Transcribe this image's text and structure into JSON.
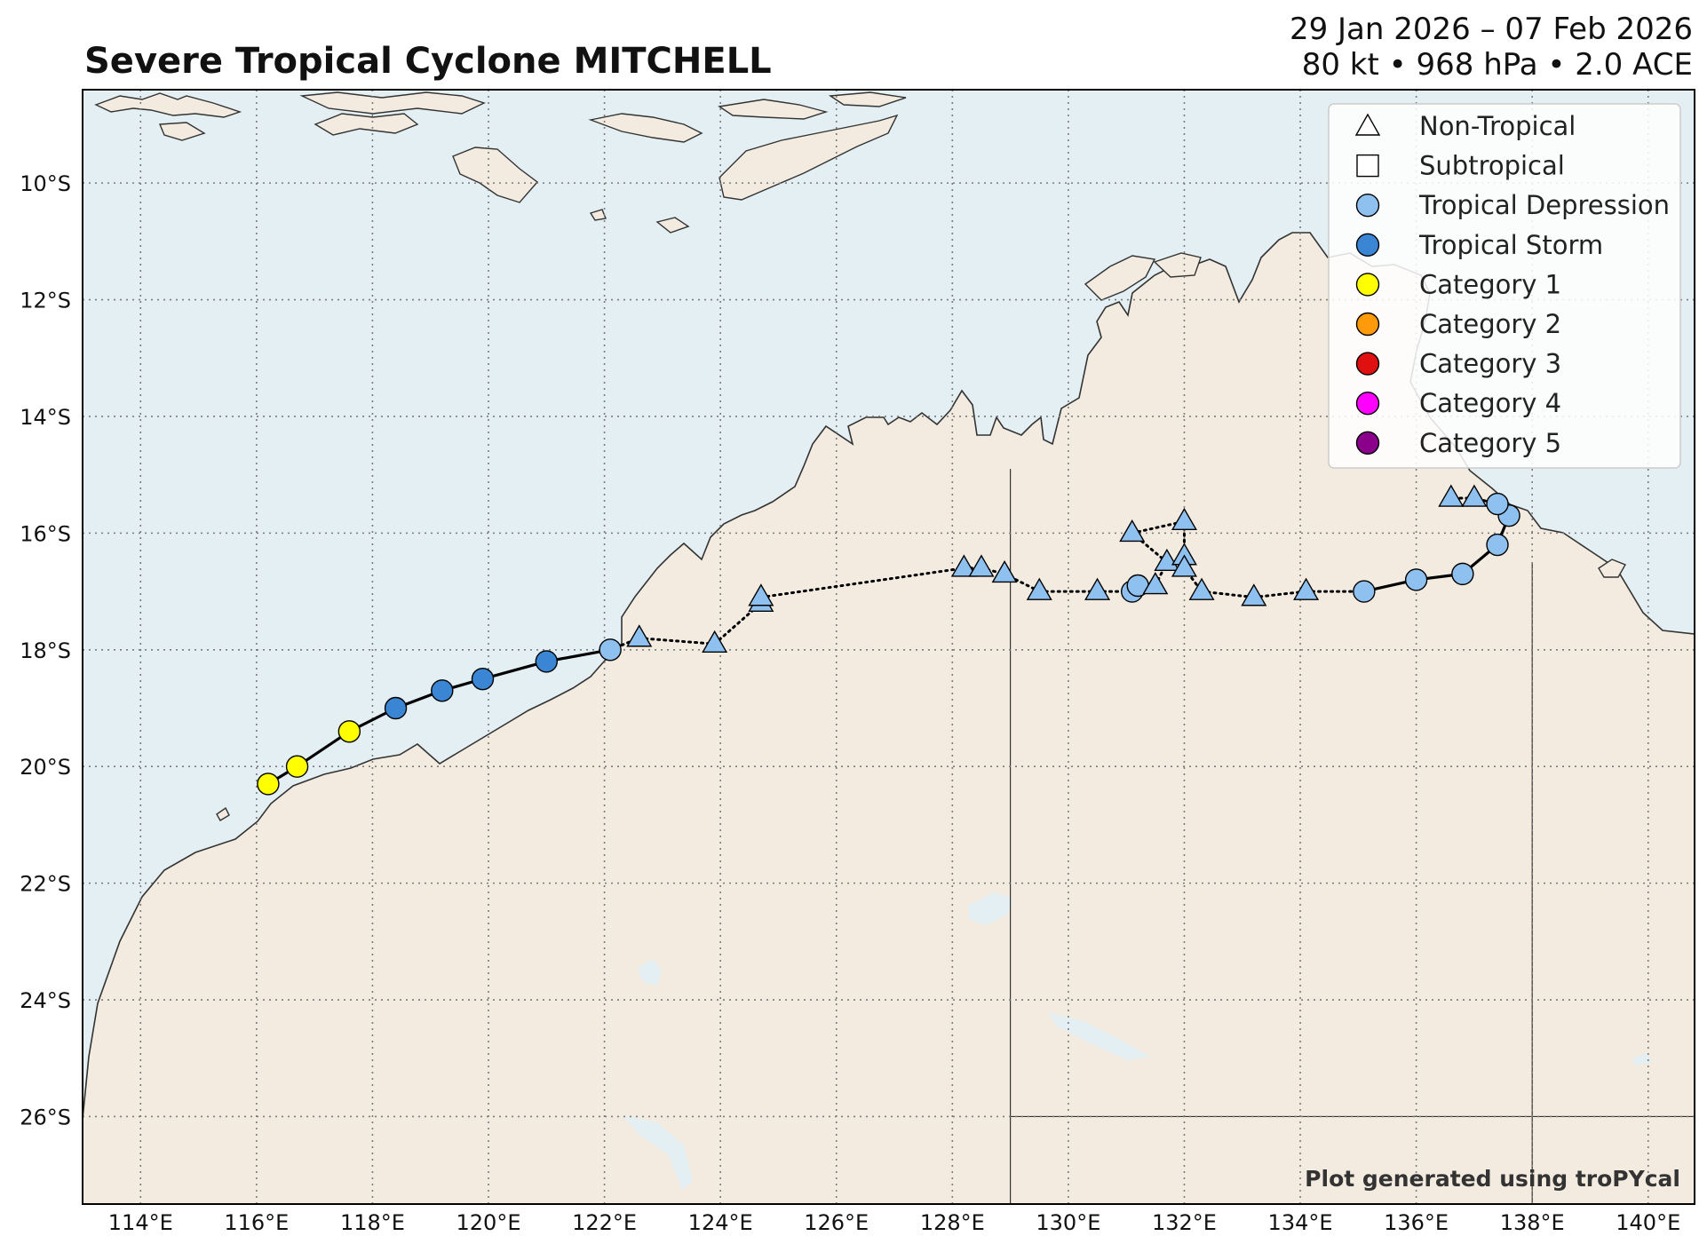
{
  "header": {
    "title": "Severe Tropical Cyclone MITCHELL",
    "date_range": "29 Jan 2026 – 07 Feb 2026",
    "stats": "80 kt • 968 hPa • 2.0 ACE"
  },
  "credit": "Plot generated using troPYcal",
  "colors": {
    "ocean": "#e3eff2",
    "land": "#f3ebe0",
    "coast": "#333333",
    "grid": "#7a7a7a",
    "track": "#000000"
  },
  "map": {
    "lon_range": [
      113.0,
      140.8
    ],
    "lat_range": [
      -27.5,
      -8.4
    ],
    "lon_ticks": [
      "114°E",
      "116°E",
      "118°E",
      "120°E",
      "122°E",
      "124°E",
      "126°E",
      "128°E",
      "130°E",
      "132°E",
      "134°E",
      "136°E",
      "138°E",
      "140°E"
    ],
    "lat_ticks": [
      "10°S",
      "12°S",
      "14°S",
      "16°S",
      "18°S",
      "20°S",
      "22°S",
      "24°S",
      "26°S"
    ],
    "gridlines": true,
    "legend_position": "top-right"
  },
  "legend": {
    "items": [
      {
        "label": "Non-Tropical",
        "shape": "triangle",
        "color": "#ffffff"
      },
      {
        "label": "Subtropical",
        "shape": "square",
        "color": "#ffffff"
      },
      {
        "label": "Tropical Depression",
        "shape": "circle",
        "color": "#8fc1f0"
      },
      {
        "label": "Tropical Storm",
        "shape": "circle",
        "color": "#3a86d4"
      },
      {
        "label": "Category 1",
        "shape": "circle",
        "color": "#ffff00"
      },
      {
        "label": "Category 2",
        "shape": "circle",
        "color": "#ff9a0a"
      },
      {
        "label": "Category 3",
        "shape": "circle",
        "color": "#e01010"
      },
      {
        "label": "Category 4",
        "shape": "circle",
        "color": "#ff00ff"
      },
      {
        "label": "Category 5",
        "shape": "circle",
        "color": "#8b008b"
      }
    ]
  },
  "chart_data": {
    "type": "scatter",
    "title": "Severe Tropical Cyclone MITCHELL",
    "xlim": [
      113.0,
      140.8
    ],
    "ylim": [
      -27.5,
      -8.4
    ],
    "track": [
      {
        "lon": 116.2,
        "lat": -20.3,
        "type": "Category 1"
      },
      {
        "lon": 116.7,
        "lat": -20.0,
        "type": "Category 1"
      },
      {
        "lon": 117.6,
        "lat": -19.4,
        "type": "Category 1"
      },
      {
        "lon": 118.4,
        "lat": -19.0,
        "type": "Tropical Storm"
      },
      {
        "lon": 119.2,
        "lat": -18.7,
        "type": "Tropical Storm"
      },
      {
        "lon": 119.9,
        "lat": -18.5,
        "type": "Tropical Storm"
      },
      {
        "lon": 121.0,
        "lat": -18.2,
        "type": "Tropical Storm"
      },
      {
        "lon": 122.1,
        "lat": -18.0,
        "type": "Tropical Depression"
      },
      {
        "lon": 122.6,
        "lat": -17.8,
        "type": "Non-Tropical"
      },
      {
        "lon": 123.9,
        "lat": -17.9,
        "type": "Non-Tropical"
      },
      {
        "lon": 124.7,
        "lat": -17.2,
        "type": "Non-Tropical"
      },
      {
        "lon": 124.7,
        "lat": -17.1,
        "type": "Non-Tropical"
      },
      {
        "lon": 128.2,
        "lat": -16.6,
        "type": "Non-Tropical"
      },
      {
        "lon": 128.5,
        "lat": -16.6,
        "type": "Non-Tropical"
      },
      {
        "lon": 128.9,
        "lat": -16.7,
        "type": "Non-Tropical"
      },
      {
        "lon": 129.5,
        "lat": -17.0,
        "type": "Non-Tropical"
      },
      {
        "lon": 130.5,
        "lat": -17.0,
        "type": "Non-Tropical"
      },
      {
        "lon": 131.1,
        "lat": -17.0,
        "type": "Tropical Depression"
      },
      {
        "lon": 131.2,
        "lat": -16.9,
        "type": "Tropical Depression"
      },
      {
        "lon": 131.5,
        "lat": -16.9,
        "type": "Non-Tropical"
      },
      {
        "lon": 131.7,
        "lat": -16.5,
        "type": "Non-Tropical"
      },
      {
        "lon": 131.1,
        "lat": -16.0,
        "type": "Non-Tropical"
      },
      {
        "lon": 132.0,
        "lat": -15.8,
        "type": "Non-Tropical"
      },
      {
        "lon": 132.0,
        "lat": -16.4,
        "type": "Non-Tropical"
      },
      {
        "lon": 132.0,
        "lat": -16.6,
        "type": "Non-Tropical"
      },
      {
        "lon": 132.3,
        "lat": -17.0,
        "type": "Non-Tropical"
      },
      {
        "lon": 133.2,
        "lat": -17.1,
        "type": "Non-Tropical"
      },
      {
        "lon": 134.1,
        "lat": -17.0,
        "type": "Non-Tropical"
      },
      {
        "lon": 135.1,
        "lat": -17.0,
        "type": "Tropical Depression"
      },
      {
        "lon": 136.0,
        "lat": -16.8,
        "type": "Tropical Depression"
      },
      {
        "lon": 136.8,
        "lat": -16.7,
        "type": "Tropical Depression"
      },
      {
        "lon": 137.4,
        "lat": -16.2,
        "type": "Tropical Depression"
      },
      {
        "lon": 137.6,
        "lat": -15.7,
        "type": "Tropical Depression"
      },
      {
        "lon": 137.4,
        "lat": -15.5,
        "type": "Tropical Depression"
      },
      {
        "lon": 137.0,
        "lat": -15.4,
        "type": "Non-Tropical"
      },
      {
        "lon": 136.6,
        "lat": -15.4,
        "type": "Non-Tropical"
      }
    ]
  }
}
